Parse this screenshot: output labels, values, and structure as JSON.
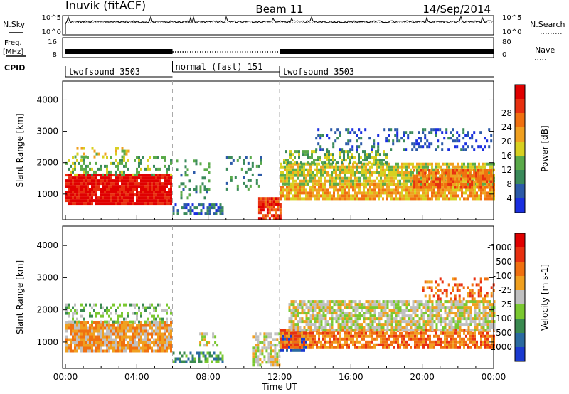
{
  "header": {
    "station": "Inuvik (fitACF)",
    "beam": "Beam 11",
    "date": "14/Sep/2014"
  },
  "nsky_panel": {
    "label": "N.Sky",
    "ticks_left": [
      "10^5",
      "10^0"
    ],
    "ticks_right": [
      "10^5",
      "10^0"
    ],
    "right_label": "N.Search"
  },
  "freq_panel": {
    "label_line1": "Freq.",
    "label_line2": "[MHz]",
    "ticks_left": [
      "16",
      "8"
    ],
    "ticks_right": [
      "80",
      "0"
    ],
    "right_label": "Nave"
  },
  "cpid": {
    "label": "CPID",
    "segments": [
      {
        "name": "twofsound 3503",
        "start_hour": 0,
        "end_hour": 6
      },
      {
        "name": "normal (fast) 151",
        "start_hour": 6,
        "end_hour": 12
      },
      {
        "name": "twofsound 3503",
        "start_hour": 12,
        "end_hour": 24
      }
    ]
  },
  "chart_data": [
    {
      "type": "heatmap",
      "title": "",
      "xlabel": "",
      "ylabel": "Slant Range [km]",
      "x_range_hours": [
        0,
        24
      ],
      "ylim": [
        180,
        4600
      ],
      "yticks": [
        1000,
        2000,
        3000,
        4000
      ],
      "colorbar": {
        "label": "Power [dB]",
        "ticks": [
          "4",
          "8",
          "12",
          "16",
          "20",
          "24",
          "28"
        ],
        "colors": [
          "#1a2fe0",
          "#2c5aa8",
          "#3a8a5a",
          "#5aaa4a",
          "#d8d020",
          "#f0a020",
          "#f07010",
          "#e83010",
          "#e00000"
        ]
      },
      "bands": [
        {
          "start": 0.0,
          "end": 5.9,
          "low": 700,
          "high": 1650,
          "level": 8,
          "density": 0.95
        },
        {
          "start": 0.0,
          "end": 5.9,
          "low": 1650,
          "high": 2200,
          "level": 3,
          "density": 0.35
        },
        {
          "start": 0.5,
          "end": 3.5,
          "low": 2200,
          "high": 2500,
          "level": 4,
          "density": 0.2
        },
        {
          "start": 6.0,
          "end": 8.8,
          "low": 400,
          "high": 700,
          "level": 1,
          "density": 0.6
        },
        {
          "start": 6.2,
          "end": 8.0,
          "low": 900,
          "high": 2100,
          "level": 2,
          "density": 0.25
        },
        {
          "start": 9.0,
          "end": 11.0,
          "low": 1200,
          "high": 2200,
          "level": 2,
          "density": 0.2
        },
        {
          "start": 10.8,
          "end": 12.0,
          "low": 250,
          "high": 900,
          "level": 7,
          "density": 0.9
        },
        {
          "start": 12.0,
          "end": 24.0,
          "low": 850,
          "high": 1350,
          "level": 5,
          "density": 0.85
        },
        {
          "start": 12.0,
          "end": 24.0,
          "low": 1350,
          "high": 2000,
          "level": 4,
          "density": 0.8
        },
        {
          "start": 12.2,
          "end": 18.0,
          "low": 2000,
          "high": 2400,
          "level": 3,
          "density": 0.55
        },
        {
          "start": 14.0,
          "end": 24.0,
          "low": 2400,
          "high": 3100,
          "level": 1,
          "density": 0.25
        },
        {
          "start": 19.5,
          "end": 24.0,
          "low": 1200,
          "high": 1800,
          "level": 6,
          "density": 0.8
        }
      ]
    },
    {
      "type": "heatmap",
      "title": "",
      "xlabel": "Time UT",
      "ylabel": "Slant Range [km]",
      "x_range_hours": [
        0,
        24
      ],
      "ylim": [
        180,
        4600
      ],
      "yticks": [
        1000,
        2000,
        3000,
        4000
      ],
      "xticks": [
        "00:00",
        "04:00",
        "08:00",
        "12:00",
        "16:00",
        "20:00",
        "00:00"
      ],
      "colorbar": {
        "label": "Velocity [m s-1]",
        "ticks": [
          "1000",
          "500",
          "100",
          "25",
          "-25",
          "-100",
          "-500",
          "-1000"
        ],
        "colors": [
          "#1a3ad0",
          "#2a6aa0",
          "#3a8a50",
          "#7ac830",
          "#c0c0c0",
          "#f0a020",
          "#f07010",
          "#e83010",
          "#e00000"
        ]
      },
      "bands": [
        {
          "start": 0.0,
          "end": 5.9,
          "low": 700,
          "high": 1650,
          "level": 5,
          "density": 0.9
        },
        {
          "start": 0.0,
          "end": 5.9,
          "low": 1650,
          "high": 2200,
          "level": 3,
          "density": 0.35
        },
        {
          "start": 6.0,
          "end": 8.8,
          "low": 400,
          "high": 700,
          "level": 2,
          "density": 0.6
        },
        {
          "start": 7.5,
          "end": 8.5,
          "low": 900,
          "high": 1300,
          "level": 4,
          "density": 0.4
        },
        {
          "start": 10.5,
          "end": 12.0,
          "low": 300,
          "high": 1300,
          "level": 4,
          "density": 0.7
        },
        {
          "start": 12.0,
          "end": 13.5,
          "low": 700,
          "high": 1400,
          "level": 0,
          "density": 0.7
        },
        {
          "start": 12.0,
          "end": 24.0,
          "low": 800,
          "high": 1400,
          "level": 6,
          "density": 0.8
        },
        {
          "start": 12.5,
          "end": 24.0,
          "low": 1400,
          "high": 2300,
          "level": 4,
          "density": 0.8
        },
        {
          "start": 20.0,
          "end": 24.0,
          "low": 2300,
          "high": 3000,
          "level": 6,
          "density": 0.3
        }
      ]
    }
  ]
}
